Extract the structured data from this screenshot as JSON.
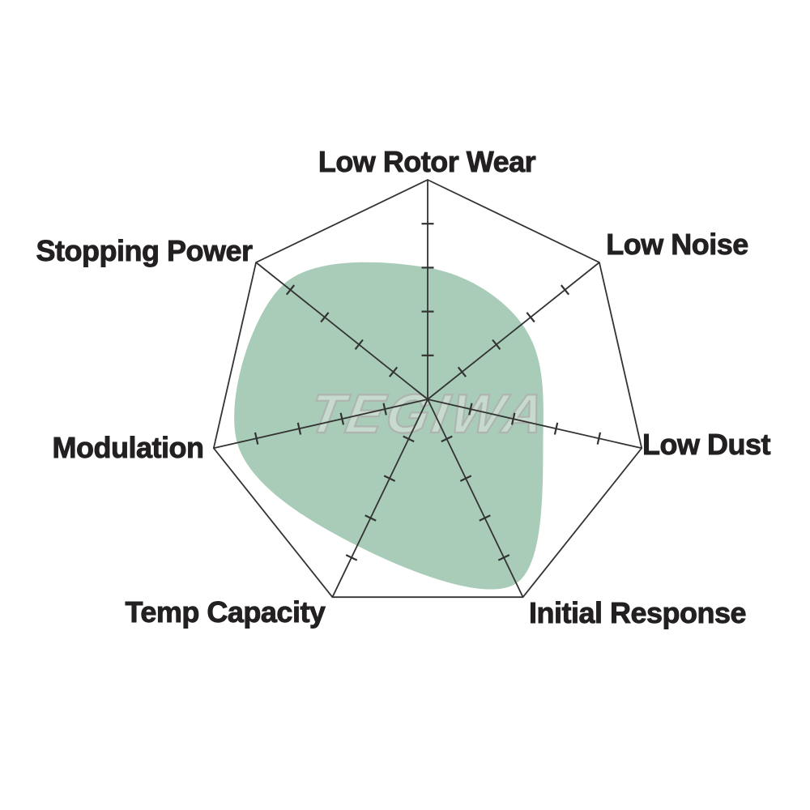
{
  "watermark": {
    "text": "TEGIWA"
  },
  "chart_data": {
    "type": "radar",
    "title": "",
    "categories": [
      "Low Rotor Wear",
      "Low Noise",
      "Low Dust",
      "Initial Response",
      "Temp Capacity",
      "Modulation",
      "Stopping Power"
    ],
    "values": [
      6.0,
      5.5,
      5.4,
      9.3,
      7.4,
      8.9,
      8.4
    ],
    "axis_range": [
      0,
      10
    ],
    "tick_interval": 2,
    "ticks_visible_per_axis": 4,
    "grid": "outer-heptagon-outline-with-axis-tick-dashes",
    "rings": 0,
    "legend": "none",
    "smoothing": "slight-rounded-corners",
    "colors": {
      "fill": "#a9ccb9",
      "axis_line": "#333333",
      "outline": "#333333",
      "label_text": "#232021",
      "watermark_stroke": "#aeb4b0",
      "watermark_fill": "#e9ece9",
      "background": "#ffffff"
    }
  }
}
